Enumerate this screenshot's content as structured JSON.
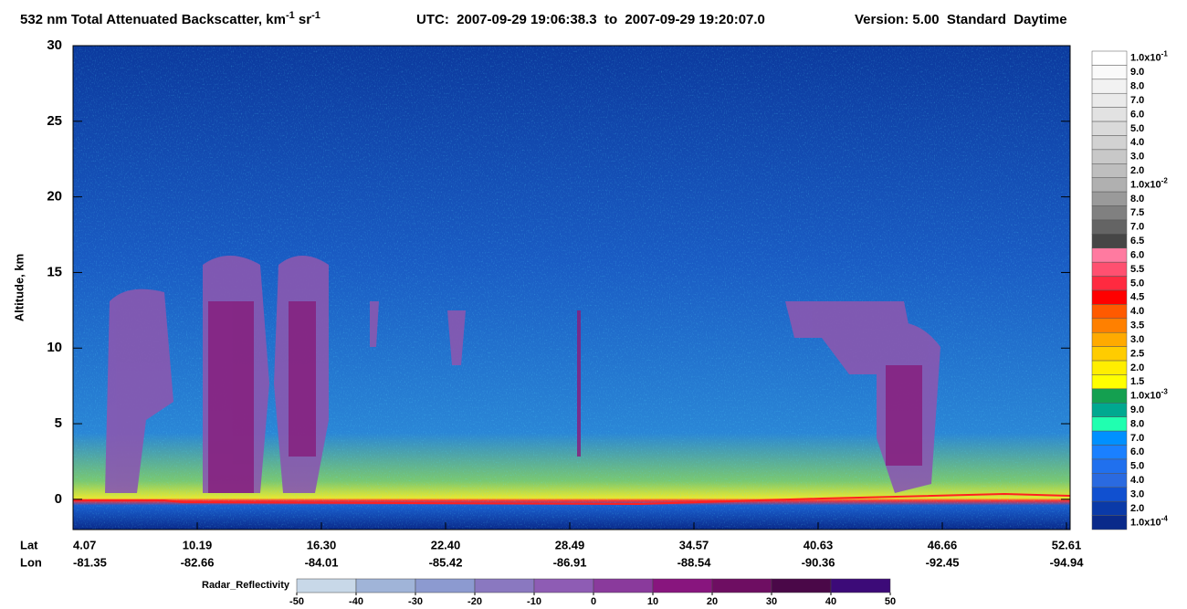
{
  "chart_data": {
    "type": "heatmap",
    "title": {
      "main": "532 nm Total Attenuated Backscatter, km",
      "exp1": "-1",
      "unit2": " sr",
      "exp2": "-1",
      "utc": "UTC:  2007-09-29 19:06:38.3  to  2007-09-29 19:20:07.0",
      "version": "Version: 5.00  Standard  Daytime"
    },
    "y_label": "Altitude, km",
    "ylim": [
      -2,
      30
    ],
    "yticks": [
      0,
      5,
      10,
      15,
      20,
      25,
      30
    ],
    "x_rows": {
      "lat_title": "Lat",
      "lon_title": "Lon",
      "lat": [
        "4.07",
        "10.19",
        "16.30",
        "22.40",
        "28.49",
        "34.57",
        "40.63",
        "46.66",
        "52.61"
      ],
      "lon": [
        "-81.35",
        "-82.66",
        "-84.01",
        "-85.42",
        "-86.91",
        "-88.54",
        "-90.36",
        "-92.45",
        "-94.94"
      ]
    },
    "colorbar": [
      {
        "label": "1.0x10",
        "exp": "-1",
        "color": "#ffffff"
      },
      {
        "label": "9.0",
        "color": "#fafafa"
      },
      {
        "label": "8.0",
        "color": "#f2f2f2"
      },
      {
        "label": "7.0",
        "color": "#eaeaea"
      },
      {
        "label": "6.0",
        "color": "#e2e2e2"
      },
      {
        "label": "5.0",
        "color": "#dadada"
      },
      {
        "label": "4.0",
        "color": "#d2d2d2"
      },
      {
        "label": "3.0",
        "color": "#c8c8c8"
      },
      {
        "label": "2.0",
        "color": "#bebebe"
      },
      {
        "label": "1.0x10",
        "exp": "-2",
        "color": "#b0b0b0"
      },
      {
        "label": "8.0",
        "color": "#9a9a9a"
      },
      {
        "label": "7.5",
        "color": "#808080"
      },
      {
        "label": "7.0",
        "color": "#646464"
      },
      {
        "label": "6.5",
        "color": "#464646"
      },
      {
        "label": "6.0",
        "color": "#ff7aa0"
      },
      {
        "label": "5.5",
        "color": "#ff5070"
      },
      {
        "label": "5.0",
        "color": "#ff2a40"
      },
      {
        "label": "4.5",
        "color": "#ff0000"
      },
      {
        "label": "4.0",
        "color": "#ff5a00"
      },
      {
        "label": "3.5",
        "color": "#ff8000"
      },
      {
        "label": "3.0",
        "color": "#ffaa00"
      },
      {
        "label": "2.5",
        "color": "#ffcc00"
      },
      {
        "label": "2.0",
        "color": "#ffee00"
      },
      {
        "label": "1.5",
        "color": "#ffff00"
      },
      {
        "label": "1.0x10",
        "exp": "-3",
        "color": "#14a050"
      },
      {
        "label": "9.0",
        "color": "#00a890"
      },
      {
        "label": "8.0",
        "color": "#20ffb0"
      },
      {
        "label": "7.0",
        "color": "#0090ff"
      },
      {
        "label": "6.0",
        "color": "#1a80ff"
      },
      {
        "label": "5.0",
        "color": "#2070ee"
      },
      {
        "label": "4.0",
        "color": "#2a6ae0"
      },
      {
        "label": "3.0",
        "color": "#1050d0"
      },
      {
        "label": "2.0",
        "color": "#0a3aa8"
      },
      {
        "label": "1.0x10",
        "exp": "-4",
        "color": "#0a2a8a"
      }
    ],
    "radar": {
      "label": "Radar_Reflectivity",
      "ticks": [
        -50,
        -40,
        -30,
        -20,
        -10,
        0,
        10,
        20,
        30,
        40,
        50
      ],
      "colors": [
        "#c8d8e8",
        "#a0b4d8",
        "#8c9ad0",
        "#8a78c0",
        "#8e5cb4",
        "#8a3a9c",
        "#88157e",
        "#6e0e62",
        "#4a0848",
        "#3c0a78"
      ]
    }
  }
}
